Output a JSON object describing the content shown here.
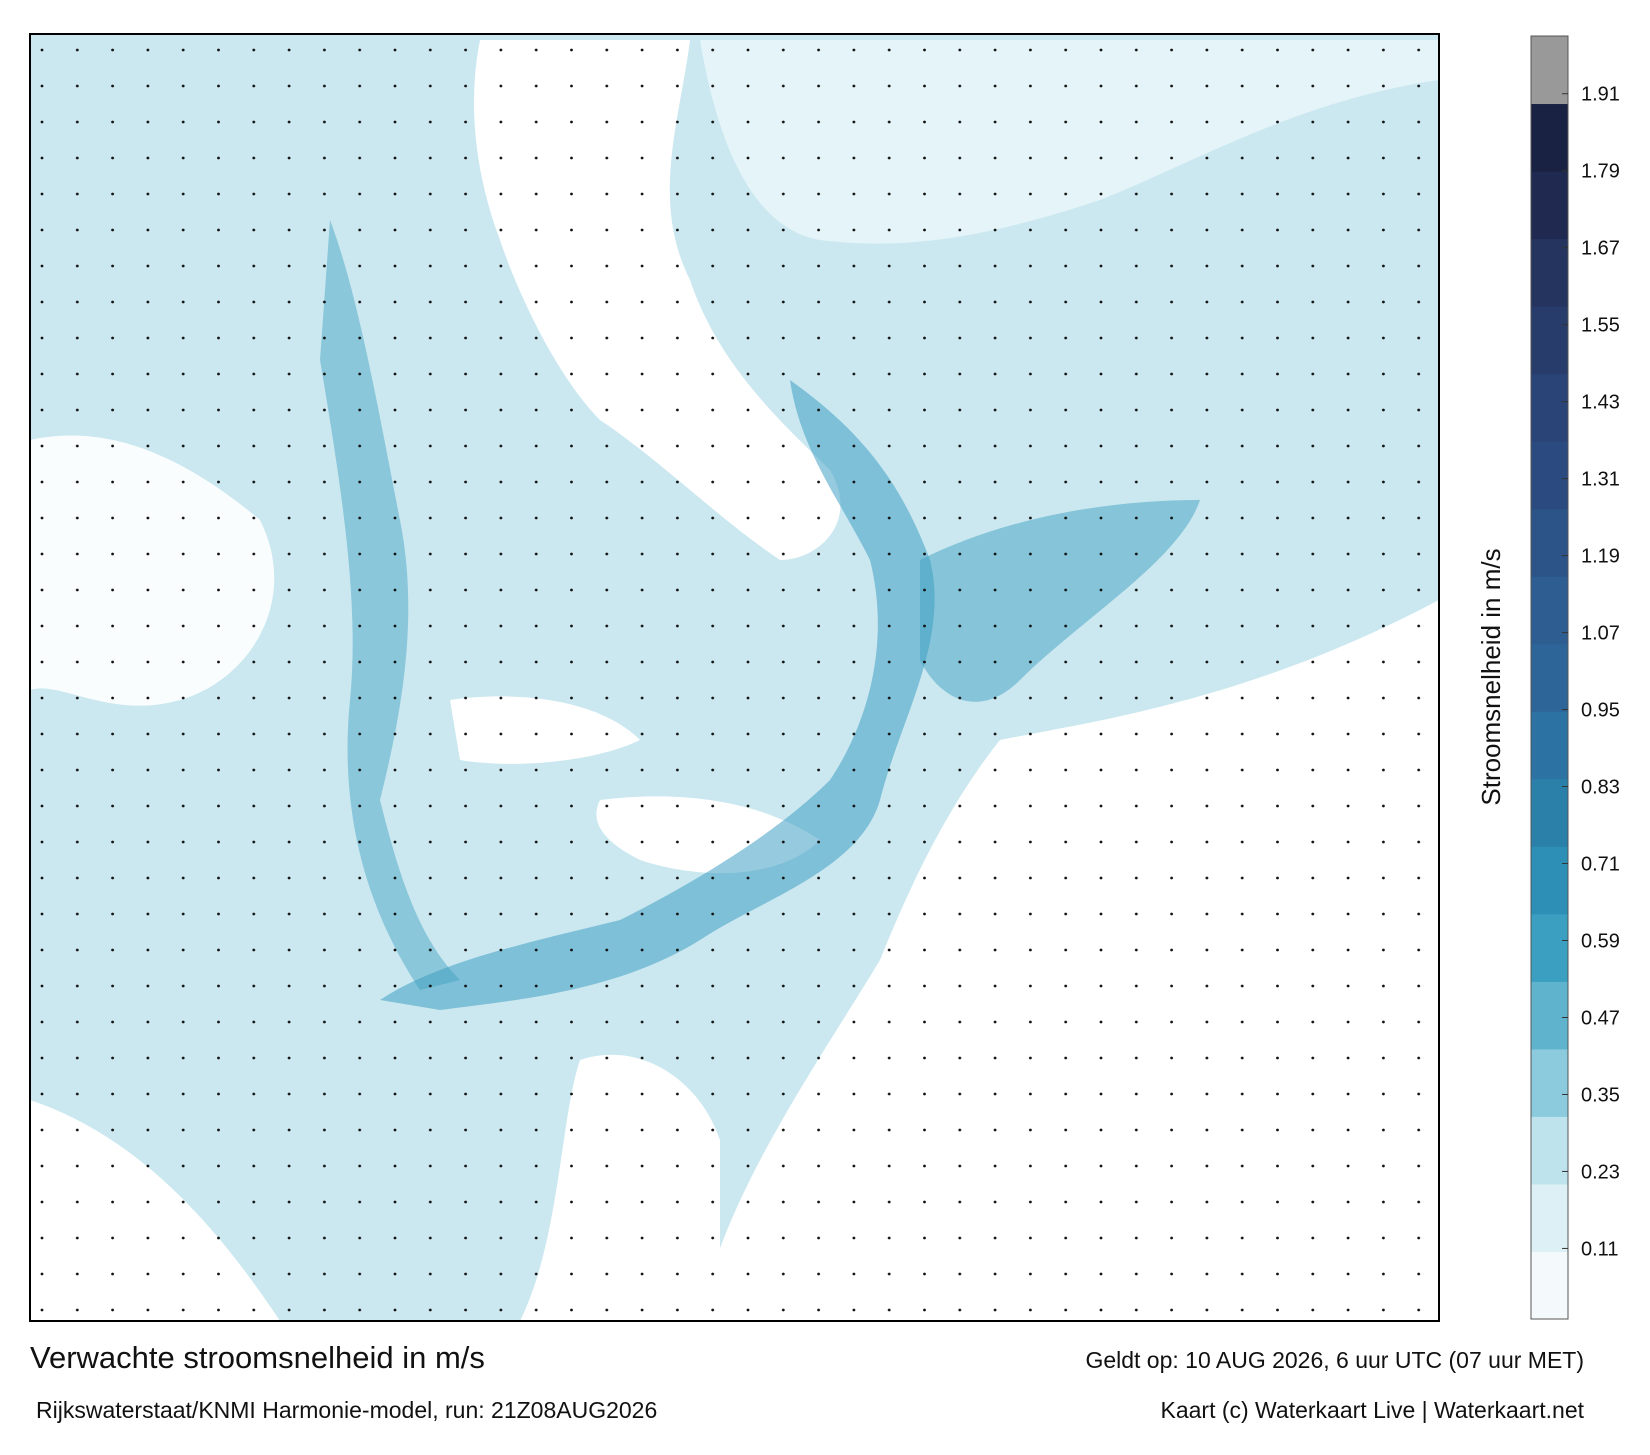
{
  "header": {
    "title": "Verwachte stroomsnelheid in m/s",
    "subtitle": "Rijkswaterstaat/KNMI Harmonie-model, run: 21Z08AUG2026",
    "valid": "Geldt op: 10 AUG 2026, 6 uur UTC (07 uur MET)",
    "credit": "Kaart (c) Waterkaart Live | Waterkaart.net"
  },
  "colorbar": {
    "label": "Stroomsnelheid in m/s",
    "lim": [
      0,
      2
    ],
    "ticks": [
      0.11,
      0.23,
      0.35,
      0.47,
      0.59,
      0.71,
      0.83,
      0.95,
      1.07,
      1.19,
      1.31,
      1.43,
      1.55,
      1.67,
      1.79,
      1.91
    ],
    "colors": [
      "#f4fafc",
      "#ddf0f5",
      "#bfe3ed",
      "#8ccbdd",
      "#5fb3cc",
      "#3a9fc0",
      "#2d8fb5",
      "#2b80aa",
      "#2c72a2",
      "#2d6598",
      "#2e5d91",
      "#2c5489",
      "#2b4b80",
      "#2a4477",
      "#283c6b",
      "#25345f",
      "#202a50",
      "#1a2243",
      "#999999"
    ]
  }
}
